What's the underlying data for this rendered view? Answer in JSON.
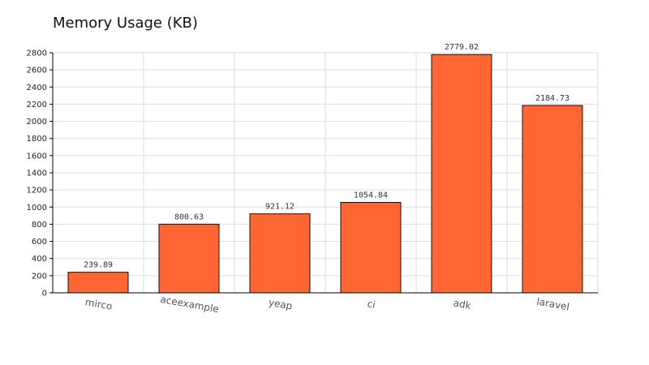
{
  "chart_data": {
    "type": "bar",
    "title": "Memory Usage (KB)",
    "xlabel": "",
    "ylabel": "",
    "categories": [
      "mirco",
      "aceexample",
      "yeap",
      "ci",
      "adk",
      "laravel"
    ],
    "values": [
      239.89,
      800.63,
      921.12,
      1054.84,
      2779.02,
      2184.73
    ],
    "value_labels": [
      "239.89",
      "800.63",
      "921.12",
      "1054.84",
      "2779.02",
      "2184.73"
    ],
    "ylim": [
      0,
      2800
    ],
    "yticks": [
      0,
      200,
      400,
      600,
      800,
      1000,
      1200,
      1400,
      1600,
      1800,
      2000,
      2200,
      2400,
      2600,
      2800
    ],
    "grid": true,
    "legend": "none",
    "colors": {
      "bar_fill": "#ff6633",
      "bar_stroke": "#111111",
      "grid": "#dddddd",
      "axis": "#000000"
    }
  }
}
